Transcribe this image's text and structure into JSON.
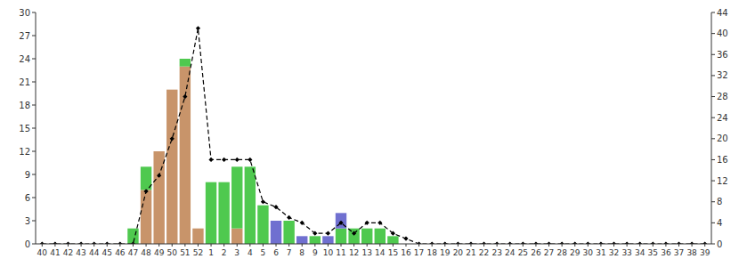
{
  "chart_data": {
    "type": "bar",
    "stacked": true,
    "grid": false,
    "categories": [
      "40",
      "41",
      "42",
      "43",
      "44",
      "45",
      "46",
      "47",
      "48",
      "49",
      "50",
      "51",
      "52",
      "1",
      "2",
      "3",
      "4",
      "5",
      "6",
      "7",
      "8",
      "9",
      "10",
      "11",
      "12",
      "13",
      "14",
      "15",
      "16",
      "17",
      "18",
      "19",
      "20",
      "21",
      "22",
      "23",
      "24",
      "25",
      "26",
      "27",
      "28",
      "29",
      "30",
      "31",
      "32",
      "33",
      "34",
      "35",
      "36",
      "37",
      "38",
      "39"
    ],
    "series": [
      {
        "type": "bar",
        "color": "#c8946a",
        "values": [
          0,
          0,
          0,
          0,
          0,
          0,
          0,
          0,
          7,
          12,
          20,
          23,
          2,
          0,
          0,
          2,
          0,
          0,
          0,
          0,
          0,
          0,
          0,
          0,
          0,
          0,
          0,
          0,
          0,
          0,
          0,
          0,
          0,
          0,
          0,
          0,
          0,
          0,
          0,
          0,
          0,
          0,
          0,
          0,
          0,
          0,
          0,
          0,
          0,
          0,
          0,
          0
        ]
      },
      {
        "type": "bar",
        "color": "#4fc94f",
        "values": [
          0,
          0,
          0,
          0,
          0,
          0,
          0,
          2,
          3,
          0,
          0,
          1,
          0,
          8,
          8,
          8,
          10,
          5,
          0,
          3,
          0,
          1,
          0,
          2,
          2,
          2,
          2,
          1,
          0,
          0,
          0,
          0,
          0,
          0,
          0,
          0,
          0,
          0,
          0,
          0,
          0,
          0,
          0,
          0,
          0,
          0,
          0,
          0,
          0,
          0,
          0,
          0
        ]
      },
      {
        "type": "bar",
        "color": "#7070d0",
        "values": [
          0,
          0,
          0,
          0,
          0,
          0,
          0,
          0,
          0,
          0,
          0,
          0,
          0,
          0,
          0,
          0,
          0,
          0,
          3,
          0,
          1,
          0,
          1,
          2,
          0,
          0,
          0,
          0,
          0,
          0,
          0,
          0,
          0,
          0,
          0,
          0,
          0,
          0,
          0,
          0,
          0,
          0,
          0,
          0,
          0,
          0,
          0,
          0,
          0,
          0,
          0,
          0
        ]
      },
      {
        "type": "line",
        "axis": "y2",
        "color": "#000000",
        "line_style": "dashed",
        "marker": "diamond",
        "values": [
          0,
          0,
          0,
          0,
          0,
          0,
          0,
          0,
          10,
          13,
          20,
          28,
          41,
          16,
          16,
          16,
          16,
          8,
          7,
          5,
          4,
          2,
          2,
          4,
          2,
          4,
          4,
          2,
          1,
          0,
          0,
          0,
          0,
          0,
          0,
          0,
          0,
          0,
          0,
          0,
          0,
          0,
          0,
          0,
          0,
          0,
          0,
          0,
          0,
          0,
          0,
          0
        ]
      }
    ],
    "ylim": [
      0,
      30
    ],
    "yticks": [
      0,
      3,
      6,
      9,
      12,
      15,
      18,
      21,
      24,
      27,
      30
    ],
    "y2lim": [
      0,
      44
    ],
    "y2ticks": [
      0,
      4,
      8,
      12,
      16,
      20,
      24,
      28,
      32,
      36,
      40,
      44
    ]
  }
}
